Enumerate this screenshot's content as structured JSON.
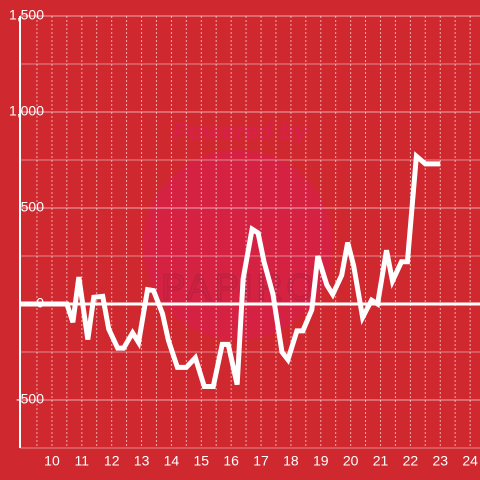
{
  "chart_data": {
    "type": "line",
    "annotations": [
      "Powered by",
      "PAPIRO"
    ],
    "x": [
      8.93,
      10.5,
      10.7,
      10.9,
      11.2,
      11.4,
      11.7,
      11.9,
      12.2,
      12.4,
      12.7,
      12.9,
      13.2,
      13.4,
      13.7,
      13.9,
      14.2,
      14.5,
      14.8,
      15.1,
      15.4,
      15.7,
      15.9,
      16.2,
      16.4,
      16.7,
      16.9,
      17.1,
      17.4,
      17.7,
      17.9,
      18.2,
      18.4,
      18.7,
      18.9,
      19.2,
      19.4,
      19.7,
      19.9,
      20.1,
      20.4,
      20.7,
      20.9,
      21.2,
      21.4,
      21.7,
      21.9,
      22.2,
      22.5,
      23
    ],
    "series": [
      {
        "color": "#ffffff",
        "values": [
          0,
          0,
          -95,
          140,
          -185,
          35,
          40,
          -130,
          -230,
          -230,
          -150,
          -200,
          75,
          70,
          -50,
          -190,
          -330,
          -330,
          -280,
          -430,
          -430,
          -210,
          -210,
          -420,
          130,
          390,
          370,
          220,
          50,
          -250,
          -290,
          -140,
          -140,
          -30,
          250,
          100,
          50,
          150,
          320,
          200,
          -70,
          20,
          0,
          280,
          120,
          220,
          220,
          770,
          730,
          730
        ]
      }
    ],
    "xlim": [
      8.93,
      24.33
    ],
    "xticks": [
      10,
      11,
      12,
      13,
      14,
      15,
      16,
      17,
      18,
      19,
      20,
      21,
      22,
      23,
      24
    ],
    "ylim": [
      -750,
      1500
    ],
    "yticks": [
      {
        "value": -500,
        "label": "-500"
      },
      0,
      500,
      {
        "value": 1000,
        "label": "1,000"
      },
      {
        "value": 1500,
        "label": "1,500"
      }
    ],
    "grid": true
  }
}
